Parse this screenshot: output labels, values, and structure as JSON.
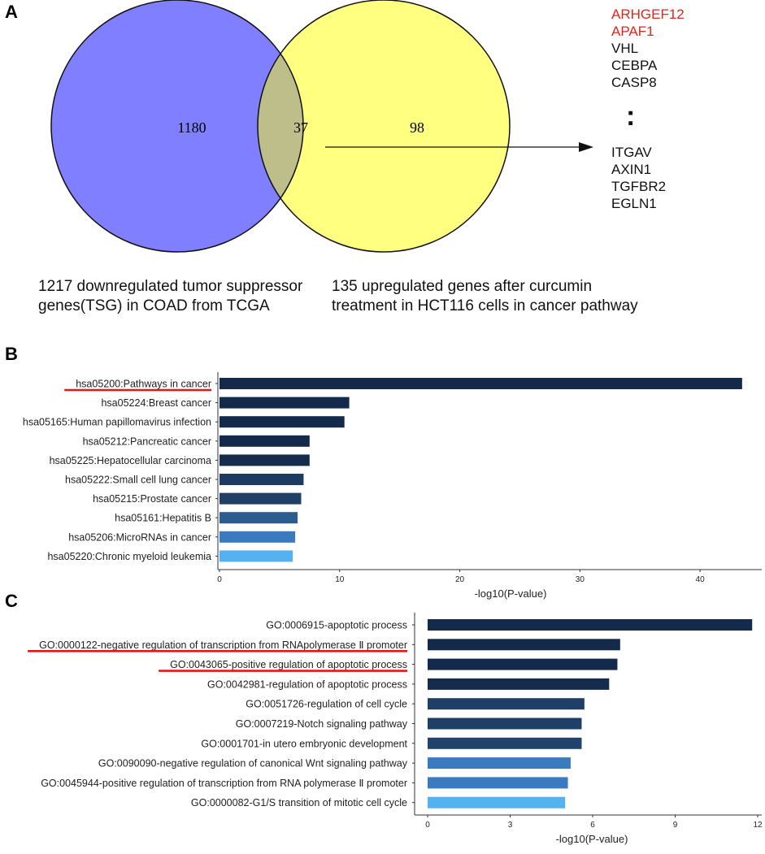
{
  "panels": {
    "a": "A",
    "b": "B",
    "c": "C"
  },
  "colors": {
    "left_circle": "#7f7fff",
    "right_circle": "#ffff80",
    "overlap": "#bebe8a",
    "highlight": "#e1261c",
    "underline": "#e0191b"
  },
  "venn": {
    "left_count": "1180",
    "overlap_count": "37",
    "right_count": "98",
    "left_caption": "1217 downregulated tumor suppressor genes(TSG) in COAD from TCGA",
    "right_caption": "135 upregulated genes after curcumin treatment in HCT116 cells in cancer pathway",
    "genes_top": [
      "ARHGEF12",
      "APAF1",
      "VHL",
      "CEBPA",
      "CASP8"
    ],
    "genes_highlighted": [
      "ARHGEF12",
      "APAF1"
    ],
    "ellipsis": ":",
    "genes_bottom": [
      "ITGAV",
      "AXIN1",
      "TGFBR2",
      "EGLN1"
    ]
  },
  "chart_data": [
    {
      "type": "bar",
      "orientation": "horizontal",
      "categories": [
        "hsa05200:Pathways in cancer",
        "hsa05224:Breast cancer",
        "hsa05165:Human papillomavirus infection",
        "hsa05212:Pancreatic cancer",
        "hsa05225:Hepatocellular carcinoma",
        "hsa05222:Small cell lung cancer",
        "hsa05215:Prostate cancer",
        "hsa05161:Hepatitis B",
        "hsa05206:MicroRNAs in  cancer",
        "hsa05220:Chronic myeloid leukemia"
      ],
      "values": [
        43.5,
        10.8,
        10.4,
        7.5,
        7.5,
        7.0,
        6.8,
        6.5,
        6.3,
        6.1
      ],
      "bar_colors": [
        "#142a4a",
        "#142a4a",
        "#142a4a",
        "#142a4a",
        "#152c4d",
        "#1d3a60",
        "#1f3f66",
        "#2b5d8f",
        "#3a7bbf",
        "#56b1f0"
      ],
      "underlined": [
        "hsa05200:Pathways in cancer"
      ],
      "xlabel": "-log10(P-value)",
      "xlim": [
        0,
        45
      ],
      "xticks": [
        0,
        10,
        20,
        30,
        40
      ]
    },
    {
      "type": "bar",
      "orientation": "horizontal",
      "categories": [
        "GO:0006915-apoptotic process",
        "GO:0000122-negative regulation of transcription from RNApolymerase Ⅱ promoter",
        "GO:0043065-positive regulation of apoptotic process",
        "GO:0042981-regulation of apoptotic process",
        "GO:0051726-regulation of cell cycle",
        "GO:0007219-Notch signaling pathway",
        "GO:0001701-in utero embryonic development",
        "GO:0090090-negative regulation of canonical Wnt signaling pathway",
        "GO:0045944-positive regulation of transcription from RNA polymerase Ⅱ promoter",
        "GO:0000082-G1/S transition of mitotic cell cycle"
      ],
      "values": [
        11.8,
        7.0,
        6.9,
        6.6,
        5.7,
        5.6,
        5.6,
        5.2,
        5.1,
        5.0
      ],
      "bar_colors": [
        "#142a4a",
        "#142a4a",
        "#142a4a",
        "#152c4d",
        "#1f3f66",
        "#1f3f66",
        "#21436b",
        "#3a7bbf",
        "#3a7bbf",
        "#56b1f0"
      ],
      "underlined": [
        "GO:0000122-negative regulation of transcription from RNApolymerase Ⅱ promoter",
        "GO:0043065-positive regulation of apoptotic process"
      ],
      "xlabel": "-log10(P-value)",
      "xlim": [
        0,
        12
      ],
      "xticks": [
        0,
        3,
        6,
        9,
        12
      ]
    }
  ]
}
